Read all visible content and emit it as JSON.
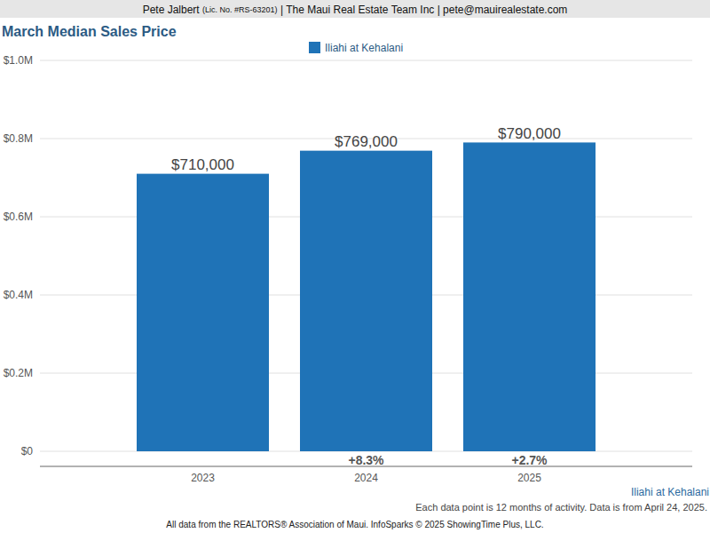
{
  "header": {
    "agent": "Pete Jalbert",
    "license": "(Lic. No. #RS-63201)",
    "rest": "| The Maui Real Estate Team Inc | pete@mauirealestate.com"
  },
  "chart_data": {
    "type": "bar",
    "title": "March Median Sales Price",
    "categories": [
      "2023",
      "2024",
      "2025"
    ],
    "series": [
      {
        "name": "Iliahi at Kehalani",
        "color": "#1f73b7",
        "values": [
          710000,
          769000,
          790000
        ],
        "value_labels": [
          "$710,000",
          "$769,000",
          "$790,000"
        ]
      }
    ],
    "annotations": [
      null,
      "+8.3%",
      "+2.7%"
    ],
    "ylim": [
      0,
      1000000
    ],
    "yticks": [
      {
        "value": 0,
        "label": "$0"
      },
      {
        "value": 200000,
        "label": "$0.2M"
      },
      {
        "value": 400000,
        "label": "$0.4M"
      },
      {
        "value": 600000,
        "label": "$0.6M"
      },
      {
        "value": 800000,
        "label": "$0.8M"
      },
      {
        "value": 1000000,
        "label": "$1.0M"
      }
    ],
    "grid": true,
    "legend": "top",
    "data_labels": true
  },
  "footer": {
    "area": "Iliahi at Kehalani",
    "note": "Each data point is 12 months of activity. Data is from April 24, 2025.",
    "source": "All data from the REALTORS® Association of Maui. InfoSparks © 2025 ShowingTime Plus, LLC."
  }
}
